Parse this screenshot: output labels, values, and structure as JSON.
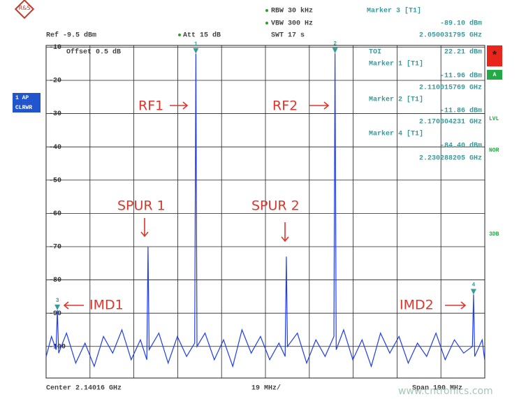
{
  "chart_data": {
    "type": "line",
    "xlim": [
      2.04516,
      2.23516
    ],
    "ylim": [
      -109.5,
      -9.5
    ],
    "yticks": [
      -10,
      -20,
      -30,
      -40,
      -50,
      -60,
      -70,
      -80,
      -90,
      -100
    ],
    "grid": true,
    "series": [
      {
        "color": "#1f3cf0",
        "x": [
          2.0452,
          2.0475,
          2.0495,
          2.050032,
          2.0506,
          2.054,
          2.058,
          2.062,
          2.066,
          2.07,
          2.074,
          2.078,
          2.082,
          2.086,
          2.0888,
          2.0893,
          2.0898,
          2.094,
          2.098,
          2.102,
          2.106,
          2.1095,
          2.110016,
          2.1105,
          2.114,
          2.118,
          2.122,
          2.126,
          2.13,
          2.134,
          2.138,
          2.142,
          2.146,
          2.1487,
          2.1492,
          2.1497,
          2.154,
          2.158,
          2.162,
          2.166,
          2.1698,
          2.170304,
          2.1708,
          2.174,
          2.178,
          2.182,
          2.186,
          2.19,
          2.194,
          2.198,
          2.202,
          2.206,
          2.21,
          2.214,
          2.218,
          2.222,
          2.226,
          2.2298,
          2.230288,
          2.2308,
          2.234,
          2.2351
        ],
        "values": [
          -103,
          -97,
          -101,
          -89.1,
          -102,
          -96,
          -105,
          -99,
          -106,
          -97,
          -102,
          -95,
          -104,
          -98,
          -104,
          -70,
          -101,
          -96,
          -105,
          -97,
          -103,
          -99,
          -11.96,
          -100,
          -96,
          -104,
          -98,
          -106,
          -95,
          -102,
          -97,
          -104,
          -99,
          -103,
          -73,
          -100,
          -96,
          -105,
          -98,
          -103,
          -97,
          -11.86,
          -101,
          -95,
          -104,
          -98,
          -106,
          -96,
          -102,
          -97,
          -105,
          -99,
          -103,
          -96,
          -104,
          -98,
          -102,
          -100,
          -84.4,
          -103,
          -98,
          -104
        ]
      }
    ],
    "markers": [
      {
        "label": "3",
        "x": 2.050031795,
        "value": -89.1
      },
      {
        "label": "1",
        "x": 2.110015769,
        "value": -11.96
      },
      {
        "label": "2",
        "x": 2.170304231,
        "value": -11.86
      },
      {
        "label": "4",
        "x": 2.230288205,
        "value": -84.4
      }
    ],
    "annotations": [
      "RF1",
      "RF2",
      "SPUR 1",
      "SPUR 2",
      "IMD1",
      "IMD2"
    ]
  },
  "header": {
    "rbw": "RBW 30 kHz",
    "vbw": "VBW 300 Hz",
    "swt": "SWT 17 s",
    "ref": "Ref -9.5 dBm",
    "att": "Att 15 dB",
    "offset": "Offset 0.5 dB"
  },
  "marker_readouts": [
    {
      "title": "Marker 3 [T1]",
      "level": "-89.10 dBm",
      "frequency": "2.050031795 GHz"
    },
    {
      "title": "TOI",
      "level": "22.21 dBm"
    },
    {
      "title": "Marker 1 [T1]",
      "level": "-11.96 dBm",
      "frequency": "2.110015769 GHz"
    },
    {
      "title": "Marker 2 [T1]",
      "level": "-11.86 dBm",
      "frequency": "2.170304231 GHz"
    },
    {
      "title": "Marker 4 [T1]",
      "level": "-84.40 dBm",
      "frequency": "2.230288205 GHz"
    }
  ],
  "side_labels": {
    "trace_mode": "1 AP",
    "trace_detector": "CLRWR",
    "star": "*",
    "a": "A",
    "lvl": "LVL",
    "nor": "NOR",
    "db": "3DB"
  },
  "footer": {
    "center": "Center 2.14016 GHz",
    "div": "19 MHz/",
    "span": "Span 190 MHz"
  },
  "watermark": "www.cntronics.com"
}
